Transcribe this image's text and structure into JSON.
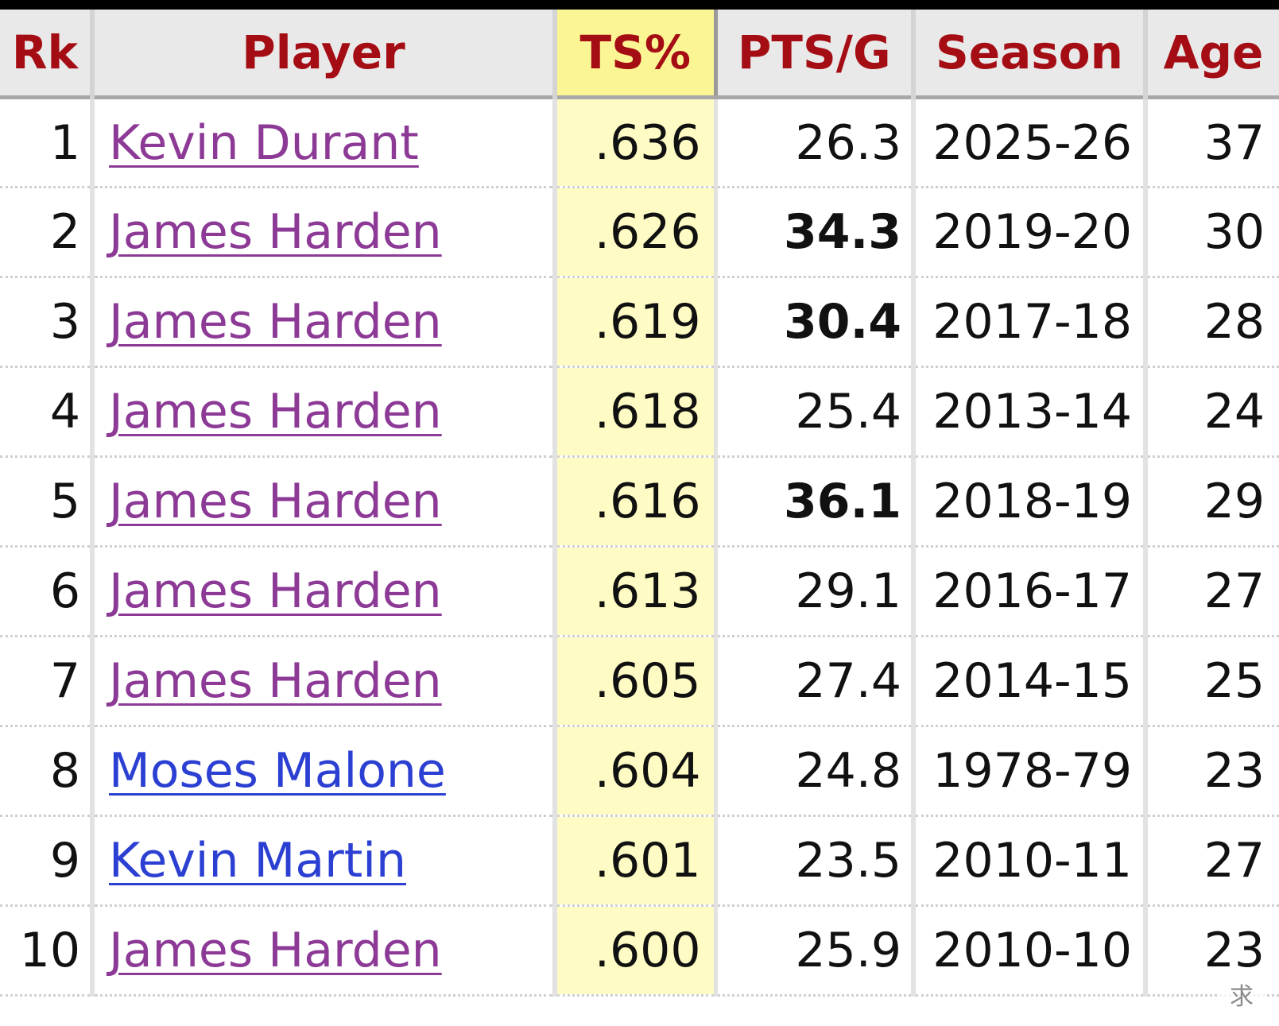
{
  "table": {
    "headers": {
      "rk": "Rk",
      "player": "Player",
      "ts": "TS%",
      "pts": "PTS/G",
      "season": "Season",
      "age": "Age"
    },
    "sorted_column": "TS%",
    "colors": {
      "header_text": "#a50d14",
      "sorted_header_bg": "#fbf594",
      "sorted_column_bg": "#fefcc4",
      "visited_link": "#8c3a96",
      "unvisited_link": "#2b3fd2"
    },
    "rows": [
      {
        "rk": "1",
        "player": "Kevin Durant",
        "ts": ".636",
        "pts": "26.3",
        "season": "2025-26",
        "age": "37"
      },
      {
        "rk": "2",
        "player": "James Harden",
        "ts": ".626",
        "pts": "34.3",
        "season": "2019-20",
        "age": "30"
      },
      {
        "rk": "3",
        "player": "James Harden",
        "ts": ".619",
        "pts": "30.4",
        "season": "2017-18",
        "age": "28"
      },
      {
        "rk": "4",
        "player": "James Harden",
        "ts": ".618",
        "pts": "25.4",
        "season": "2013-14",
        "age": "24"
      },
      {
        "rk": "5",
        "player": "James Harden",
        "ts": ".616",
        "pts": "36.1",
        "season": "2018-19",
        "age": "29"
      },
      {
        "rk": "6",
        "player": "James Harden",
        "ts": ".613",
        "pts": "29.1",
        "season": "2016-17",
        "age": "27"
      },
      {
        "rk": "7",
        "player": "James Harden",
        "ts": ".605",
        "pts": "27.4",
        "season": "2014-15",
        "age": "25"
      },
      {
        "rk": "8",
        "player": "Moses Malone",
        "ts": ".604",
        "pts": "24.8",
        "season": "1978-79",
        "age": "23"
      },
      {
        "rk": "9",
        "player": "Kevin Martin",
        "ts": ".601",
        "pts": "23.5",
        "season": "2010-11",
        "age": "27"
      },
      {
        "rk": "10",
        "player": "James Harden",
        "ts": ".600",
        "pts": "25.9",
        "season": "2010-10",
        "age": "23"
      }
    ]
  },
  "watermark": {
    "text": "求"
  }
}
